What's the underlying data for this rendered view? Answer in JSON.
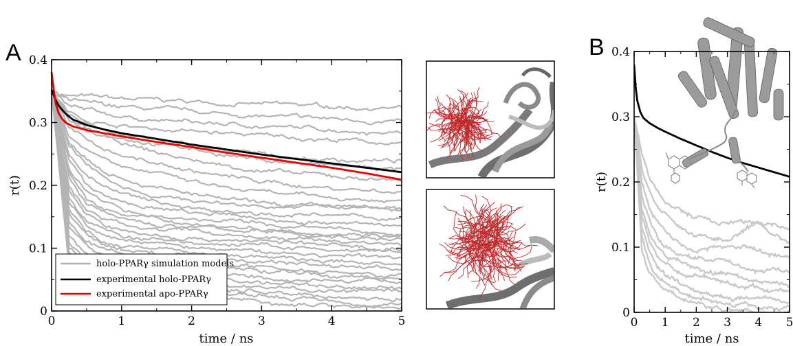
{
  "colors": {
    "simulation": "#b4b4b4",
    "holo": "#000000",
    "apo": "#e60000",
    "ligand": "#c0282a",
    "protein": "#8c8c8c"
  },
  "icons": {
    "inset_top": "protein-ligand-snapshot-icon",
    "inset_bottom": "protein-ligand-snapshot-icon",
    "structure": "protein-structure-icon"
  },
  "chart_data": [
    {
      "type": "line",
      "panel_label": "A",
      "xlabel": "time / ns",
      "ylabel": "r(t)",
      "xlim": [
        0,
        5
      ],
      "ylim": [
        0,
        0.4
      ],
      "xticks": [
        0,
        1,
        2,
        3,
        4,
        5
      ],
      "yticks": [
        0,
        0.1,
        0.2,
        0.3,
        0.4
      ],
      "ytick_labels": [
        "0",
        "0.1",
        "0.2",
        "0.3",
        "0.4"
      ],
      "legend_position": "bottom-left",
      "legend": [
        {
          "label": "holo-PPARγ simulation models",
          "color": "#b4b4b4"
        },
        {
          "label": "experimental holo-PPARγ",
          "color": "#000000"
        },
        {
          "label": "experimental apo-PPARγ",
          "color": "#e60000"
        }
      ],
      "series": [
        {
          "name": "experimental holo-PPARγ",
          "color": "#000000",
          "x": [
            0,
            0.05,
            0.1,
            0.2,
            0.3,
            0.5,
            0.75,
            1,
            1.5,
            2,
            2.5,
            3,
            3.5,
            4,
            4.5,
            5
          ],
          "y": [
            0.352,
            0.338,
            0.327,
            0.314,
            0.305,
            0.296,
            0.289,
            0.283,
            0.274,
            0.265,
            0.257,
            0.249,
            0.242,
            0.235,
            0.228,
            0.221
          ]
        },
        {
          "name": "experimental apo-PPARγ",
          "color": "#e60000",
          "x": [
            0,
            0.03,
            0.06,
            0.1,
            0.15,
            0.2,
            0.3,
            0.5,
            0.75,
            1,
            1.5,
            2,
            2.5,
            3,
            3.5,
            4,
            4.5,
            5
          ],
          "y": [
            0.38,
            0.352,
            0.33,
            0.315,
            0.306,
            0.3,
            0.294,
            0.288,
            0.283,
            0.278,
            0.269,
            0.261,
            0.252,
            0.244,
            0.236,
            0.228,
            0.219,
            0.209
          ]
        }
      ],
      "simulation_models": {
        "color": "#b4b4b4",
        "x": [
          0,
          0.25,
          0.5,
          0.75,
          1,
          1.5,
          2,
          2.5,
          3,
          3.5,
          4,
          4.5,
          5
        ],
        "curves": [
          [
            0.35,
            0.343,
            0.341,
            0.339,
            0.337,
            0.335,
            0.333,
            0.331,
            0.329,
            0.327,
            0.325,
            0.324,
            0.323
          ],
          [
            0.35,
            0.335,
            0.33,
            0.327,
            0.324,
            0.32,
            0.316,
            0.313,
            0.31,
            0.307,
            0.305,
            0.303,
            0.301
          ],
          [
            0.35,
            0.325,
            0.318,
            0.313,
            0.309,
            0.304,
            0.3,
            0.297,
            0.294,
            0.291,
            0.289,
            0.287,
            0.286
          ],
          [
            0.35,
            0.315,
            0.305,
            0.299,
            0.295,
            0.29,
            0.286,
            0.282,
            0.279,
            0.276,
            0.273,
            0.27,
            0.265
          ],
          [
            0.35,
            0.31,
            0.298,
            0.29,
            0.283,
            0.272,
            0.262,
            0.255,
            0.248,
            0.244,
            0.241,
            0.24,
            0.238
          ],
          [
            0.35,
            0.305,
            0.293,
            0.285,
            0.278,
            0.268,
            0.258,
            0.249,
            0.241,
            0.235,
            0.231,
            0.228,
            0.225
          ],
          [
            0.35,
            0.3,
            0.285,
            0.275,
            0.266,
            0.252,
            0.24,
            0.231,
            0.224,
            0.218,
            0.214,
            0.211,
            0.21
          ],
          [
            0.35,
            0.29,
            0.27,
            0.258,
            0.249,
            0.235,
            0.223,
            0.214,
            0.206,
            0.2,
            0.196,
            0.193,
            0.19
          ],
          [
            0.35,
            0.28,
            0.258,
            0.245,
            0.235,
            0.219,
            0.205,
            0.195,
            0.188,
            0.183,
            0.18,
            0.177,
            0.175
          ],
          [
            0.35,
            0.27,
            0.245,
            0.228,
            0.215,
            0.197,
            0.185,
            0.176,
            0.17,
            0.166,
            0.164,
            0.162,
            0.16
          ],
          [
            0.35,
            0.26,
            0.232,
            0.214,
            0.2,
            0.184,
            0.176,
            0.171,
            0.168,
            0.166,
            0.166,
            0.165,
            0.163
          ],
          [
            0.35,
            0.25,
            0.217,
            0.198,
            0.186,
            0.172,
            0.165,
            0.16,
            0.157,
            0.154,
            0.151,
            0.149,
            0.147
          ],
          [
            0.35,
            0.24,
            0.2,
            0.183,
            0.172,
            0.162,
            0.156,
            0.151,
            0.147,
            0.143,
            0.14,
            0.137,
            0.135
          ],
          [
            0.35,
            0.23,
            0.19,
            0.172,
            0.162,
            0.152,
            0.147,
            0.143,
            0.138,
            0.134,
            0.13,
            0.126,
            0.124
          ],
          [
            0.35,
            0.22,
            0.18,
            0.163,
            0.153,
            0.145,
            0.14,
            0.135,
            0.131,
            0.128,
            0.126,
            0.124,
            0.122
          ],
          [
            0.35,
            0.21,
            0.17,
            0.154,
            0.145,
            0.137,
            0.133,
            0.13,
            0.127,
            0.123,
            0.119,
            0.116,
            0.114
          ],
          [
            0.35,
            0.2,
            0.16,
            0.145,
            0.138,
            0.131,
            0.127,
            0.122,
            0.118,
            0.114,
            0.111,
            0.109,
            0.107
          ],
          [
            0.35,
            0.19,
            0.152,
            0.136,
            0.128,
            0.12,
            0.116,
            0.114,
            0.112,
            0.108,
            0.104,
            0.101,
            0.1
          ],
          [
            0.35,
            0.18,
            0.143,
            0.128,
            0.12,
            0.112,
            0.108,
            0.106,
            0.104,
            0.1,
            0.096,
            0.093,
            0.092
          ],
          [
            0.35,
            0.17,
            0.135,
            0.12,
            0.113,
            0.106,
            0.101,
            0.097,
            0.094,
            0.091,
            0.088,
            0.086,
            0.085
          ],
          [
            0.35,
            0.16,
            0.126,
            0.112,
            0.106,
            0.1,
            0.095,
            0.09,
            0.086,
            0.082,
            0.079,
            0.077,
            0.076
          ],
          [
            0.35,
            0.15,
            0.118,
            0.104,
            0.098,
            0.092,
            0.088,
            0.084,
            0.08,
            0.076,
            0.072,
            0.07,
            0.068
          ],
          [
            0.35,
            0.14,
            0.109,
            0.096,
            0.09,
            0.084,
            0.08,
            0.075,
            0.071,
            0.068,
            0.065,
            0.062,
            0.06
          ],
          [
            0.35,
            0.13,
            0.1,
            0.088,
            0.082,
            0.076,
            0.072,
            0.068,
            0.064,
            0.06,
            0.057,
            0.054,
            0.052
          ],
          [
            0.35,
            0.12,
            0.092,
            0.08,
            0.074,
            0.068,
            0.064,
            0.06,
            0.056,
            0.052,
            0.049,
            0.047,
            0.045
          ],
          [
            0.35,
            0.11,
            0.083,
            0.072,
            0.066,
            0.06,
            0.055,
            0.05,
            0.046,
            0.043,
            0.04,
            0.038,
            0.036
          ],
          [
            0.35,
            0.1,
            0.075,
            0.064,
            0.058,
            0.052,
            0.047,
            0.042,
            0.038,
            0.035,
            0.032,
            0.03,
            0.028
          ],
          [
            0.35,
            0.09,
            0.067,
            0.056,
            0.05,
            0.044,
            0.039,
            0.035,
            0.031,
            0.027,
            0.024,
            0.021,
            0.02
          ],
          [
            0.35,
            0.08,
            0.058,
            0.048,
            0.042,
            0.036,
            0.031,
            0.027,
            0.023,
            0.02,
            0.017,
            0.014,
            0.012
          ],
          [
            0.35,
            0.07,
            0.05,
            0.04,
            0.034,
            0.028,
            0.024,
            0.02,
            0.016,
            0.013,
            0.01,
            0.008,
            0.006
          ]
        ]
      }
    },
    {
      "type": "line",
      "panel_label": "B",
      "xlabel": "time / ns",
      "ylabel": "r(t)",
      "xlim": [
        0,
        5
      ],
      "ylim": [
        0,
        0.4
      ],
      "xticks": [
        0,
        1,
        2,
        3,
        4,
        5
      ],
      "yticks": [
        0,
        0.1,
        0.2,
        0.3,
        0.4
      ],
      "ytick_labels": [
        "0",
        "0.1",
        "0.2",
        "0.3",
        "0.4"
      ],
      "series": [
        {
          "name": "experimental holo-PPARγ",
          "color": "#000000",
          "x": [
            0,
            0.05,
            0.1,
            0.2,
            0.3,
            0.5,
            0.75,
            1,
            1.5,
            2,
            2.5,
            3,
            3.5,
            4,
            4.5,
            5
          ],
          "y": [
            0.38,
            0.345,
            0.325,
            0.307,
            0.298,
            0.29,
            0.283,
            0.277,
            0.266,
            0.256,
            0.246,
            0.237,
            0.229,
            0.222,
            0.215,
            0.208
          ]
        }
      ],
      "simulation_models": {
        "color": "#c8c8c8",
        "x": [
          0,
          0.25,
          0.5,
          0.75,
          1,
          1.5,
          2,
          2.5,
          3,
          3.5,
          4,
          4.5,
          5
        ],
        "curves": [
          [
            0.3,
            0.24,
            0.205,
            0.185,
            0.17,
            0.155,
            0.145,
            0.14,
            0.138,
            0.136,
            0.135,
            0.135,
            0.13
          ],
          [
            0.3,
            0.22,
            0.185,
            0.162,
            0.148,
            0.13,
            0.118,
            0.112,
            0.112,
            0.12,
            0.135,
            0.118,
            0.108
          ],
          [
            0.3,
            0.2,
            0.162,
            0.14,
            0.125,
            0.105,
            0.095,
            0.1,
            0.098,
            0.1,
            0.095,
            0.09,
            0.085
          ],
          [
            0.3,
            0.18,
            0.14,
            0.115,
            0.1,
            0.088,
            0.085,
            0.082,
            0.078,
            0.07,
            0.065,
            0.066,
            0.06
          ],
          [
            0.3,
            0.16,
            0.12,
            0.098,
            0.085,
            0.075,
            0.068,
            0.062,
            0.058,
            0.052,
            0.048,
            0.045,
            0.042
          ],
          [
            0.3,
            0.145,
            0.105,
            0.085,
            0.074,
            0.062,
            0.057,
            0.05,
            0.045,
            0.04,
            0.037,
            0.034,
            0.03
          ],
          [
            0.3,
            0.13,
            0.09,
            0.07,
            0.058,
            0.045,
            0.035,
            0.03,
            0.025,
            0.022,
            0.02,
            0.018,
            0.016
          ],
          [
            0.3,
            0.115,
            0.075,
            0.055,
            0.045,
            0.032,
            0.024,
            0.018,
            0.014,
            0.012,
            0.01,
            0.009,
            0.008
          ],
          [
            0.3,
            0.1,
            0.06,
            0.042,
            0.032,
            0.02,
            0.012,
            0.008,
            0.005,
            0.003,
            0.002,
            0.001,
            0.001
          ]
        ]
      }
    }
  ]
}
